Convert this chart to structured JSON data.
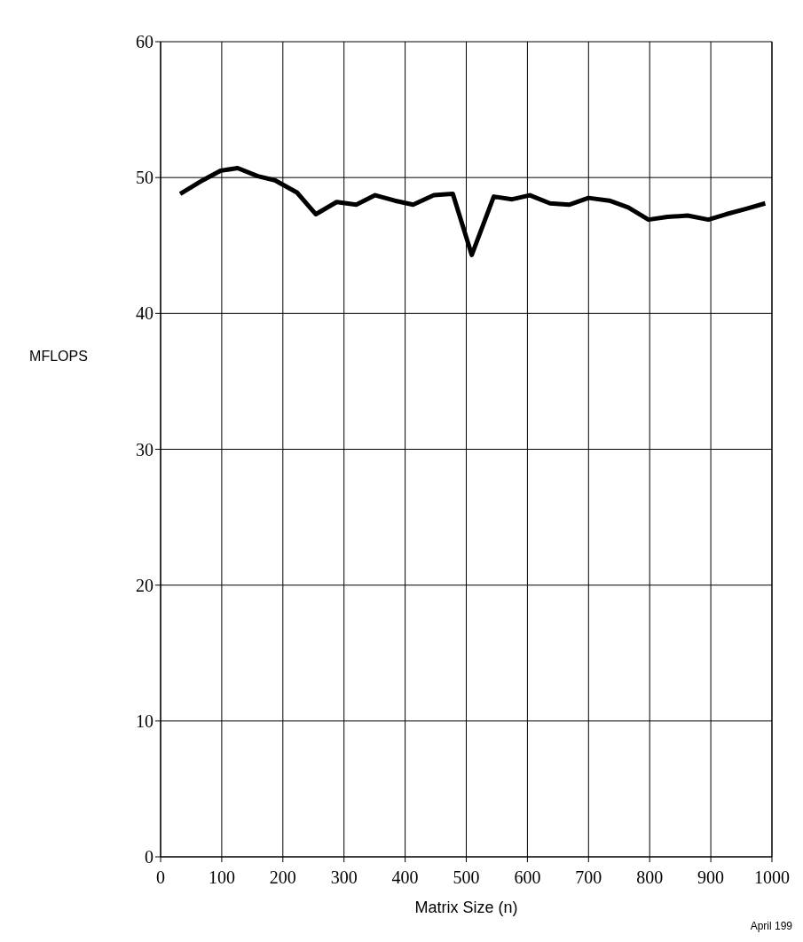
{
  "chart_data": {
    "type": "line",
    "xlabel": "Matrix Size (n)",
    "ylabel": "MFLOPS",
    "annotations": [
      "April 199"
    ],
    "x": [
      32,
      69,
      98,
      126,
      159,
      187,
      223,
      254,
      288,
      320,
      351,
      383,
      413,
      447,
      478,
      509,
      545,
      575,
      604,
      637,
      668,
      700,
      734,
      765,
      798,
      829,
      862,
      896,
      925,
      958,
      989
    ],
    "series": [
      {
        "color": "#000000",
        "values": [
          48.8,
          49.8,
          50.5,
          50.7,
          50.1,
          49.8,
          48.9,
          47.3,
          48.2,
          48.0,
          48.7,
          48.3,
          48.0,
          48.7,
          48.8,
          44.3,
          48.6,
          48.4,
          48.7,
          48.1,
          48.0,
          48.5,
          48.3,
          47.8,
          46.9,
          47.1,
          47.2,
          46.9,
          47.3,
          47.7,
          48.1
        ]
      }
    ],
    "xlim": [
      0,
      1000
    ],
    "ylim": [
      0,
      60
    ],
    "xticks": [
      0,
      100,
      200,
      300,
      400,
      500,
      600,
      700,
      800,
      900,
      1000
    ],
    "yticks": [
      0,
      10,
      20,
      30,
      40,
      50,
      60
    ],
    "grid": true,
    "line_style": "solid",
    "marker": "none"
  }
}
